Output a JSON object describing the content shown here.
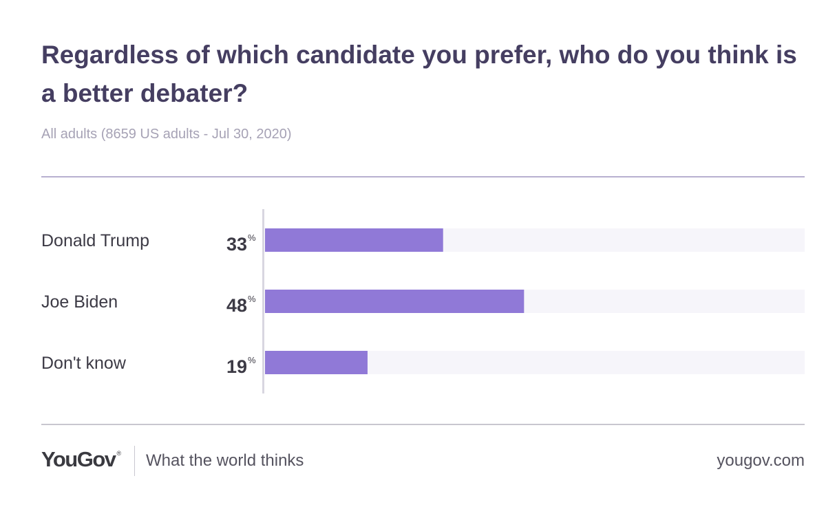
{
  "header": {
    "title": "Regardless of which candidate you prefer, who do you think is a better debater?",
    "subtitle": "All adults (8659 US adults - Jul 30, 2020)"
  },
  "footer": {
    "logo": "YouGov",
    "logo_mark": "®",
    "tagline": "What the world thinks",
    "url": "yougov.com"
  },
  "colors": {
    "bar": "#9079d7",
    "track": "#f6f5fa",
    "title": "#453e61",
    "label": "#3c3a45"
  },
  "chart_data": {
    "type": "bar",
    "orientation": "horizontal",
    "categories": [
      "Donald Trump",
      "Joe Biden",
      "Don't know"
    ],
    "values": [
      33,
      48,
      19
    ],
    "value_labels": [
      "33",
      "48",
      "19"
    ],
    "unit": "%",
    "xlim": [
      0,
      100
    ],
    "grid": false,
    "legend": "none"
  }
}
